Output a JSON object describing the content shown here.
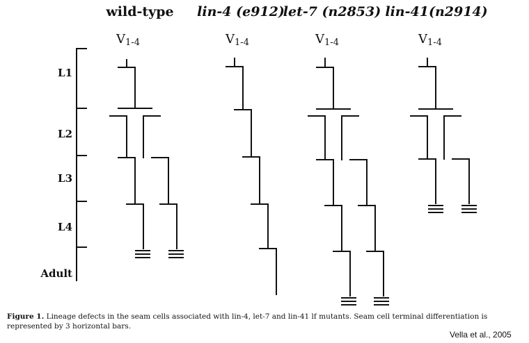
{
  "panels": [
    {
      "title": "wild-type",
      "italic": false,
      "cell_label": "V",
      "cell_sub": "1-4"
    },
    {
      "title": "lin-4 (e912)",
      "italic": true,
      "cell_label": "V",
      "cell_sub": "1-4"
    },
    {
      "title": "let-7 (n2853)",
      "italic": true,
      "cell_label": "V",
      "cell_sub": "1-4"
    },
    {
      "title": "lin-41(n2914)",
      "italic": true,
      "cell_label": "V",
      "cell_sub": "1-4"
    }
  ],
  "stages": [
    "L1",
    "L2",
    "L3",
    "L4",
    "Adult"
  ],
  "caption": {
    "label": "Figure 1.",
    "text": "Lineage defects in the seam cells associated with lin-4, let-7 and lin-41 lf mutants. Seam cell terminal differentiation is represented by 3 horizontal bars."
  },
  "credit": "Vella et al., 2005"
}
